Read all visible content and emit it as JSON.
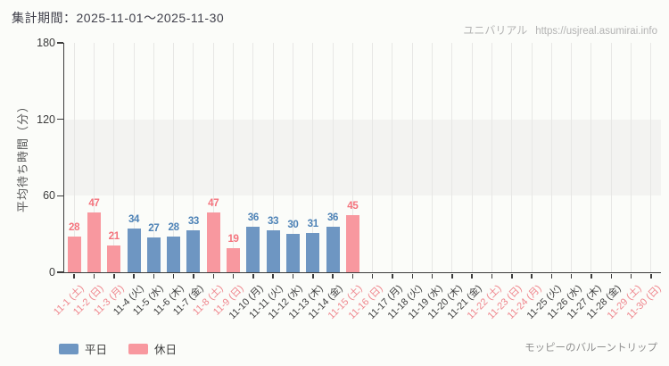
{
  "page": {
    "title": "集計期間：2025-11-01～2025-11-30",
    "watermark": {
      "site_name": "ユニバリアル",
      "url": "https://usjreal.asumirai.info"
    },
    "attribution": "モッピーのバルーントリップ"
  },
  "legend": {
    "weekday_label": "平日",
    "holiday_label": "休日"
  },
  "chart_data": {
    "type": "bar",
    "title": "集計期間：2025-11-01～2025-11-30",
    "xlabel": "",
    "ylabel": "平均待ち時間（分）",
    "ylim": [
      0,
      180
    ],
    "yticks": [
      0,
      60,
      120,
      180
    ],
    "shaded_band": [
      60,
      120
    ],
    "grid": "vertical-per-category",
    "legend_position": "bottom-left",
    "categories": [
      "11-1 (土)",
      "11-2 (日)",
      "11-3 (月)",
      "11-4 (火)",
      "11-5 (水)",
      "11-6 (木)",
      "11-7 (金)",
      "11-8 (土)",
      "11-9 (日)",
      "11-10 (月)",
      "11-11 (火)",
      "11-12 (水)",
      "11-13 (木)",
      "11-14 (金)",
      "11-15 (土)",
      "11-16 (日)",
      "11-17 (月)",
      "11-18 (火)",
      "11-19 (水)",
      "11-20 (木)",
      "11-21 (金)",
      "11-22 (土)",
      "11-23 (日)",
      "11-24 (月)",
      "11-25 (火)",
      "11-26 (水)",
      "11-27 (木)",
      "11-28 (金)",
      "11-29 (土)",
      "11-30 (日)"
    ],
    "day_type": [
      "holiday",
      "holiday",
      "holiday",
      "weekday",
      "weekday",
      "weekday",
      "weekday",
      "holiday",
      "holiday",
      "weekday",
      "weekday",
      "weekday",
      "weekday",
      "weekday",
      "holiday",
      "holiday",
      "weekday",
      "weekday",
      "weekday",
      "weekday",
      "weekday",
      "holiday",
      "holiday",
      "holiday",
      "weekday",
      "weekday",
      "weekday",
      "weekday",
      "holiday",
      "holiday"
    ],
    "values": [
      28,
      47,
      21,
      34,
      27,
      28,
      33,
      47,
      19,
      36,
      33,
      30,
      31,
      36,
      45,
      null,
      null,
      null,
      null,
      null,
      null,
      null,
      null,
      null,
      null,
      null,
      null,
      null,
      null,
      null
    ],
    "series_legend": [
      {
        "label": "平日",
        "type": "weekday"
      },
      {
        "label": "休日",
        "type": "holiday"
      }
    ],
    "colors": {
      "weekday_bar": "#6e96c2",
      "holiday_bar": "#f8989f",
      "weekday_value_label": "#4d82b6",
      "holiday_value_label": "#f4737d",
      "weekday_axis_label": "#3f3f3f",
      "holiday_axis_label": "#ef868d"
    }
  }
}
